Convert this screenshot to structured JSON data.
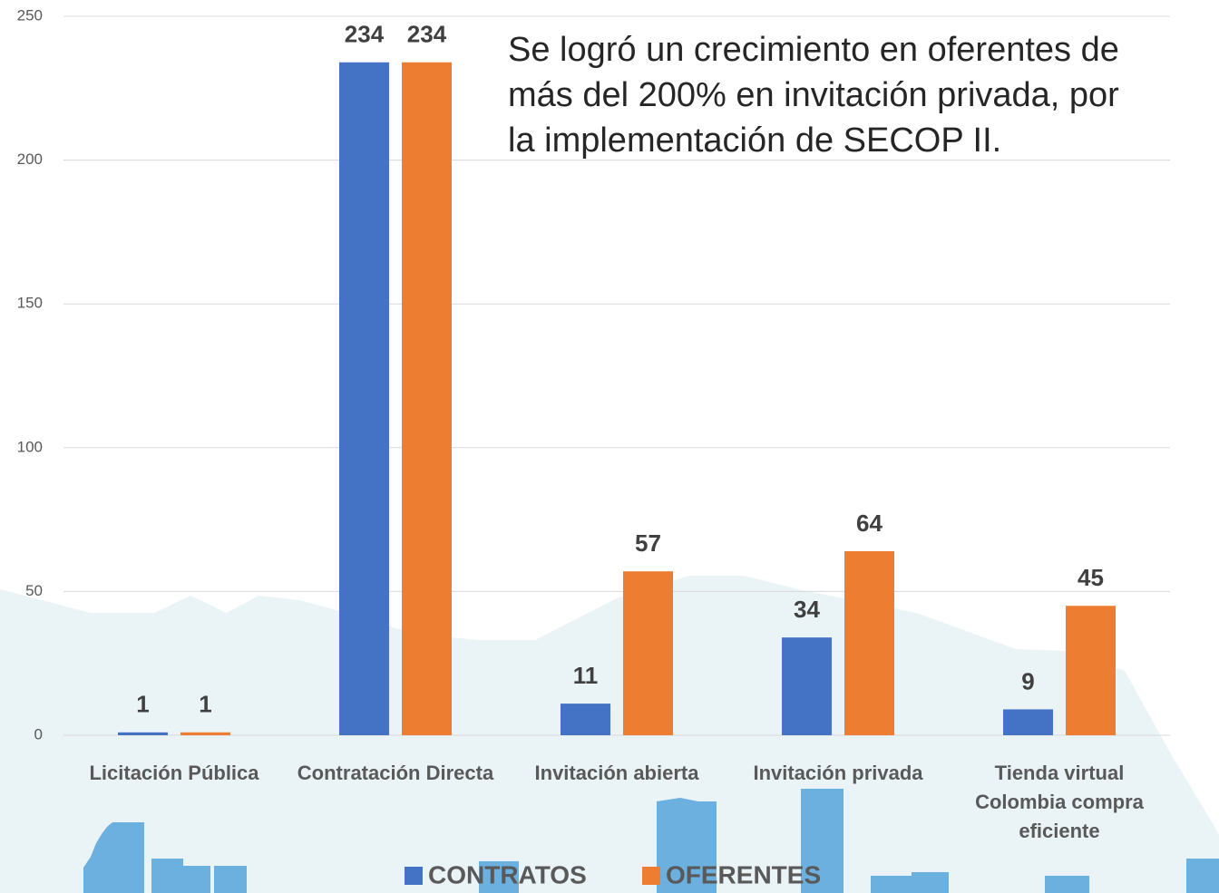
{
  "chart_data": {
    "type": "bar",
    "annotation": [
      "Se logró un crecimiento en oferentes de",
      "más del 200% en invitación privada, por",
      "la implementación de SECOP II."
    ],
    "categories": [
      "Licitación Pública",
      "Contratación Directa",
      "Invitación abierta",
      "Invitación privada",
      "Tienda virtual Colombia compra eficiente"
    ],
    "series": [
      {
        "name": "CONTRATOS",
        "color": "#4472c4",
        "values": [
          1,
          234,
          11,
          34,
          9
        ]
      },
      {
        "name": "OFERENTES",
        "color": "#ed7d31",
        "values": [
          1,
          234,
          57,
          64,
          45
        ]
      }
    ],
    "ylim": [
      0,
      250
    ],
    "yticks": [
      0,
      50,
      100,
      150,
      200,
      250
    ],
    "grid": true,
    "legend": "bottom"
  }
}
